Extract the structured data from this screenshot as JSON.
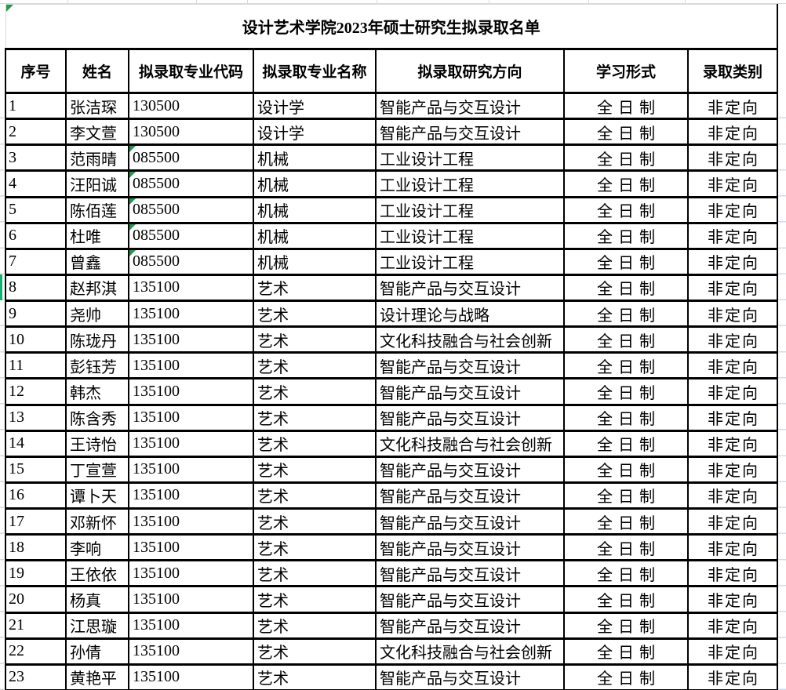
{
  "title": "设计艺术学院2023年硕士研究生拟录取名单",
  "table": {
    "headers": [
      "序号",
      "姓名",
      "拟录取专业代码",
      "拟录取专业名称",
      "拟录取研究方向",
      "学习形式",
      "录取类别"
    ],
    "rows": [
      {
        "no": "1",
        "name": "张洁琛",
        "code": "130500",
        "major": "设计学",
        "direction": "智能产品与交互设计",
        "form": "全日制",
        "category": "非定向",
        "code_flag": false
      },
      {
        "no": "2",
        "name": "李文萱",
        "code": "130500",
        "major": "设计学",
        "direction": "智能产品与交互设计",
        "form": "全日制",
        "category": "非定向",
        "code_flag": false
      },
      {
        "no": "3",
        "name": "范雨晴",
        "code": "085500",
        "major": "机械",
        "direction": "工业设计工程",
        "form": "全日制",
        "category": "非定向",
        "code_flag": true
      },
      {
        "no": "4",
        "name": "汪阳诚",
        "code": "085500",
        "major": "机械",
        "direction": "工业设计工程",
        "form": "全日制",
        "category": "非定向",
        "code_flag": true
      },
      {
        "no": "5",
        "name": "陈佰莲",
        "code": "085500",
        "major": "机械",
        "direction": "工业设计工程",
        "form": "全日制",
        "category": "非定向",
        "code_flag": true
      },
      {
        "no": "6",
        "name": "杜唯",
        "code": "085500",
        "major": "机械",
        "direction": "工业设计工程",
        "form": "全日制",
        "category": "非定向",
        "code_flag": true
      },
      {
        "no": "7",
        "name": "曾鑫",
        "code": "085500",
        "major": "机械",
        "direction": "工业设计工程",
        "form": "全日制",
        "category": "非定向",
        "code_flag": true
      },
      {
        "no": "8",
        "name": "赵邦淇",
        "code": "135100",
        "major": "艺术",
        "direction": "智能产品与交互设计",
        "form": "全日制",
        "category": "非定向",
        "code_flag": false
      },
      {
        "no": "9",
        "name": "尧帅",
        "code": "135100",
        "major": "艺术",
        "direction": "设计理论与战略",
        "form": "全日制",
        "category": "非定向",
        "code_flag": false
      },
      {
        "no": "10",
        "name": "陈珑丹",
        "code": "135100",
        "major": "艺术",
        "direction": "文化科技融合与社会创新",
        "form": "全日制",
        "category": "非定向",
        "code_flag": false
      },
      {
        "no": "11",
        "name": "彭钰芳",
        "code": "135100",
        "major": "艺术",
        "direction": "智能产品与交互设计",
        "form": "全日制",
        "category": "非定向",
        "code_flag": false
      },
      {
        "no": "12",
        "name": "韩杰",
        "code": "135100",
        "major": "艺术",
        "direction": "智能产品与交互设计",
        "form": "全日制",
        "category": "非定向",
        "code_flag": false
      },
      {
        "no": "13",
        "name": "陈含秀",
        "code": "135100",
        "major": "艺术",
        "direction": "智能产品与交互设计",
        "form": "全日制",
        "category": "非定向",
        "code_flag": false
      },
      {
        "no": "14",
        "name": "王诗怡",
        "code": "135100",
        "major": "艺术",
        "direction": "文化科技融合与社会创新",
        "form": "全日制",
        "category": "非定向",
        "code_flag": false
      },
      {
        "no": "15",
        "name": "丁宣萱",
        "code": "135100",
        "major": "艺术",
        "direction": "智能产品与交互设计",
        "form": "全日制",
        "category": "非定向",
        "code_flag": false
      },
      {
        "no": "16",
        "name": "谭卜天",
        "code": "135100",
        "major": "艺术",
        "direction": "智能产品与交互设计",
        "form": "全日制",
        "category": "非定向",
        "code_flag": false
      },
      {
        "no": "17",
        "name": "邓新怀",
        "code": "135100",
        "major": "艺术",
        "direction": "智能产品与交互设计",
        "form": "全日制",
        "category": "非定向",
        "code_flag": false
      },
      {
        "no": "18",
        "name": "李响",
        "code": "135100",
        "major": "艺术",
        "direction": "智能产品与交互设计",
        "form": "全日制",
        "category": "非定向",
        "code_flag": false
      },
      {
        "no": "19",
        "name": "王依依",
        "code": "135100",
        "major": "艺术",
        "direction": "智能产品与交互设计",
        "form": "全日制",
        "category": "非定向",
        "code_flag": false
      },
      {
        "no": "20",
        "name": "杨真",
        "code": "135100",
        "major": "艺术",
        "direction": "智能产品与交互设计",
        "form": "全日制",
        "category": "非定向",
        "code_flag": false
      },
      {
        "no": "21",
        "name": "江思璇",
        "code": "135100",
        "major": "艺术",
        "direction": "智能产品与交互设计",
        "form": "全日制",
        "category": "非定向",
        "code_flag": false
      },
      {
        "no": "22",
        "name": "孙倩",
        "code": "135100",
        "major": "艺术",
        "direction": "文化科技融合与社会创新",
        "form": "全日制",
        "category": "非定向",
        "code_flag": false
      },
      {
        "no": "23",
        "name": "黄艳平",
        "code": "135100",
        "major": "艺术",
        "direction": "智能产品与交互设计",
        "form": "全日制",
        "category": "非定向",
        "code_flag": false
      }
    ]
  },
  "decorations": {
    "title_flag": true,
    "left_marker_row": 8,
    "flag_color": "#1e9c4c",
    "marker_color": "#12b26e",
    "grid_color": "#d9d9d9",
    "right_stub_color": "#cfdcef",
    "border_color": "#000000"
  }
}
